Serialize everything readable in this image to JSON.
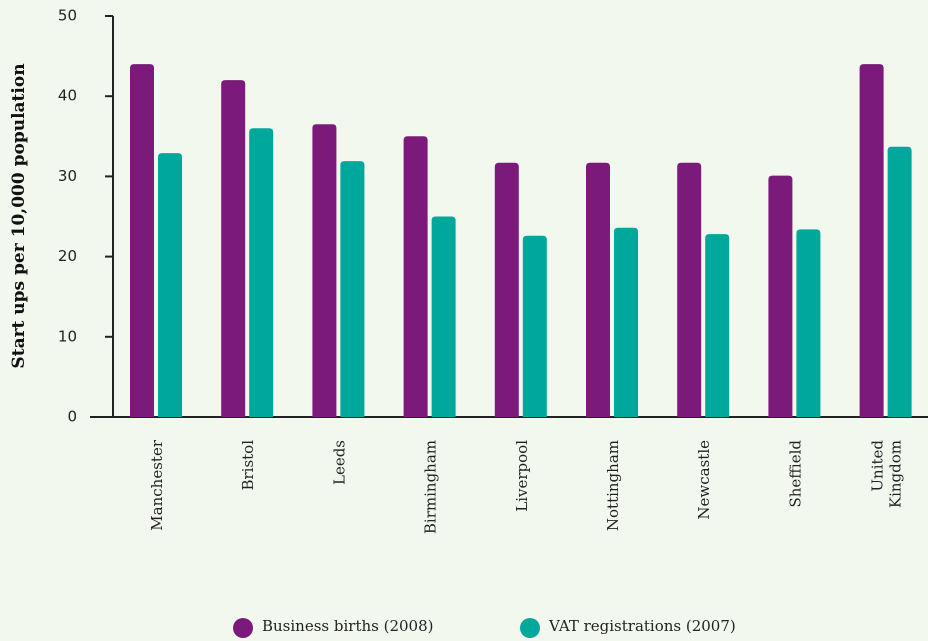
{
  "chart_data": {
    "type": "bar",
    "y_label": "Start ups per 10,000 population",
    "categories": [
      "Manchester",
      "Bristol",
      "Leeds",
      "Birmingham",
      "Liverpool",
      "Nottingham",
      "Newcastle",
      "Sheffield",
      "United\nKingdom"
    ],
    "series": [
      {
        "name": "Business births (2008)",
        "color": "#7b1a7a",
        "values": [
          44,
          42,
          36.5,
          35,
          31.7,
          31.7,
          31.7,
          30.1,
          44
        ]
      },
      {
        "name": "VAT registrations (2007)",
        "color": "#00a89c",
        "values": [
          32.9,
          36,
          31.9,
          25,
          22.6,
          23.6,
          22.8,
          23.4,
          33.7
        ]
      }
    ],
    "ylim": [
      0,
      50
    ],
    "yticks": [
      0,
      10,
      20,
      30,
      40,
      50
    ],
    "grid": false
  }
}
